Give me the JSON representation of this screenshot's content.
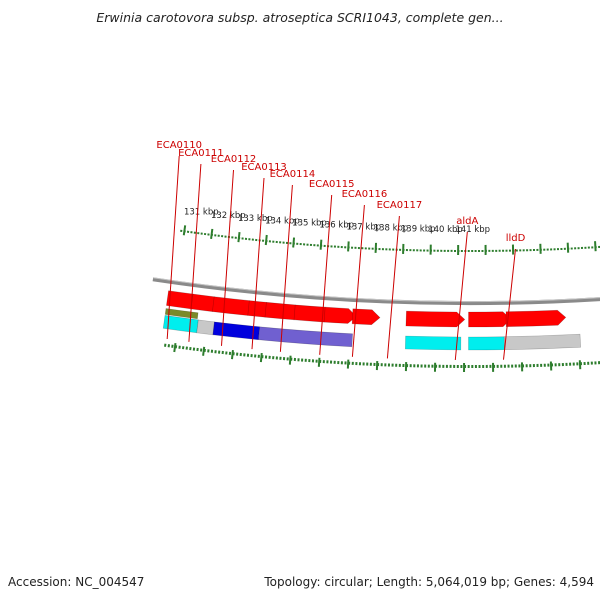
{
  "title": "Erwinia carotovora subsp. atroseptica SCRI1043, complete gen...",
  "footer": {
    "accession": "Accession: NC_004547",
    "summary": "Topology: circular; Length: 5,064,019 bp; Genes: 4,594"
  },
  "colors": {
    "backbone": "#8a8a8a",
    "forward_gene": "#ff0000",
    "tick": "#2d7d2d",
    "label": "#cc0000",
    "label_line": "#cc0000",
    "gray_feature": "#c8c8c8",
    "blue_feature": "#0000dd",
    "purple_feature": "#7060d0",
    "cyan_feature": "#00eeee",
    "olive_feature": "#7a8a2a"
  },
  "gene_labels": [
    "ECA0110",
    "ECA0111",
    "ECA0112",
    "ECA0113",
    "ECA0114",
    "ECA0115",
    "ECA0116",
    "ECA0117",
    "aldA",
    "lldD"
  ],
  "kbp_labels": [
    "131 kbp",
    "132 kbp",
    "133 kbp",
    "134 kbp",
    "135 kbp",
    "136 kbp",
    "137 kbp",
    "138 kbp",
    "139 kbp",
    "140 kbp",
    "141 kbp"
  ]
}
